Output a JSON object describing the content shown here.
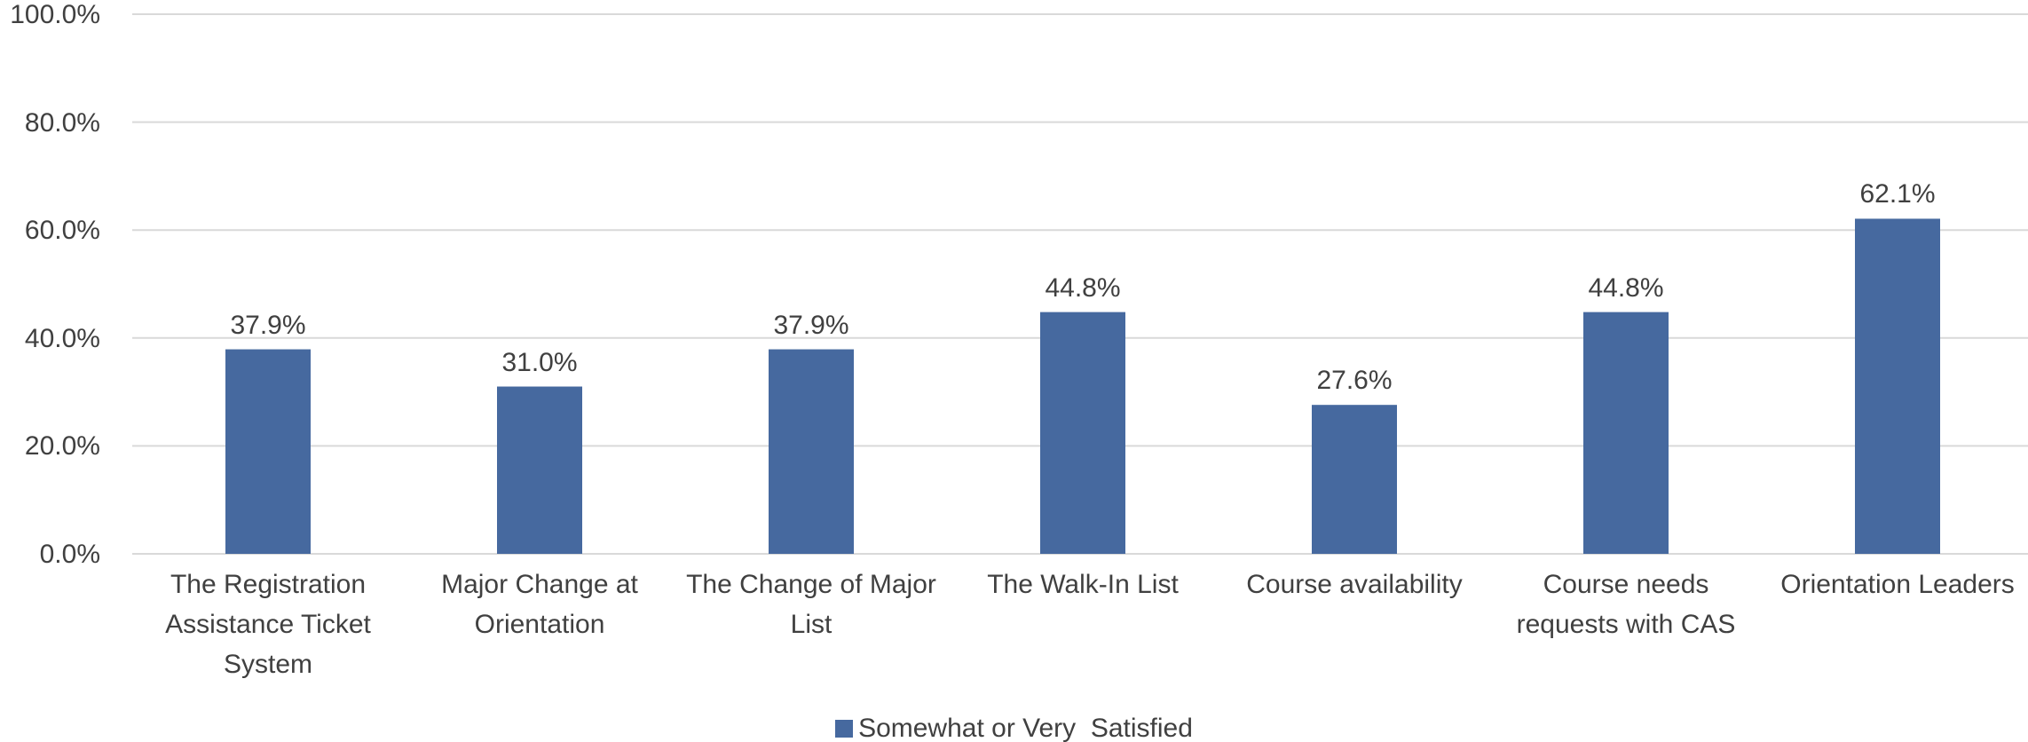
{
  "chart_data": {
    "type": "bar",
    "categories": [
      "The Registration Assistance Ticket System",
      "Major Change at Orientation",
      "The Change of Major List",
      "The Walk-In List",
      "Course availability",
      "Course needs requests with CAS",
      "Orientation Leaders"
    ],
    "series": [
      {
        "name": "Somewhat or Very  Satisfied",
        "color": "#46699f",
        "values": [
          37.9,
          31.0,
          37.9,
          44.8,
          27.6,
          44.8,
          62.1
        ],
        "value_labels": [
          "37.9%",
          "31.0%",
          "37.9%",
          "44.8%",
          "27.6%",
          "44.8%",
          "62.1%"
        ]
      }
    ],
    "ylim": [
      0,
      100
    ],
    "yticks": [
      {
        "value": 0,
        "label": "0.0%"
      },
      {
        "value": 20,
        "label": "20.0%"
      },
      {
        "value": 40,
        "label": "40.0%"
      },
      {
        "value": 60,
        "label": "60.0%"
      },
      {
        "value": 80,
        "label": "80.0%"
      },
      {
        "value": 100,
        "label": "100.0%"
      }
    ],
    "grid": true,
    "legend": "bottom"
  }
}
